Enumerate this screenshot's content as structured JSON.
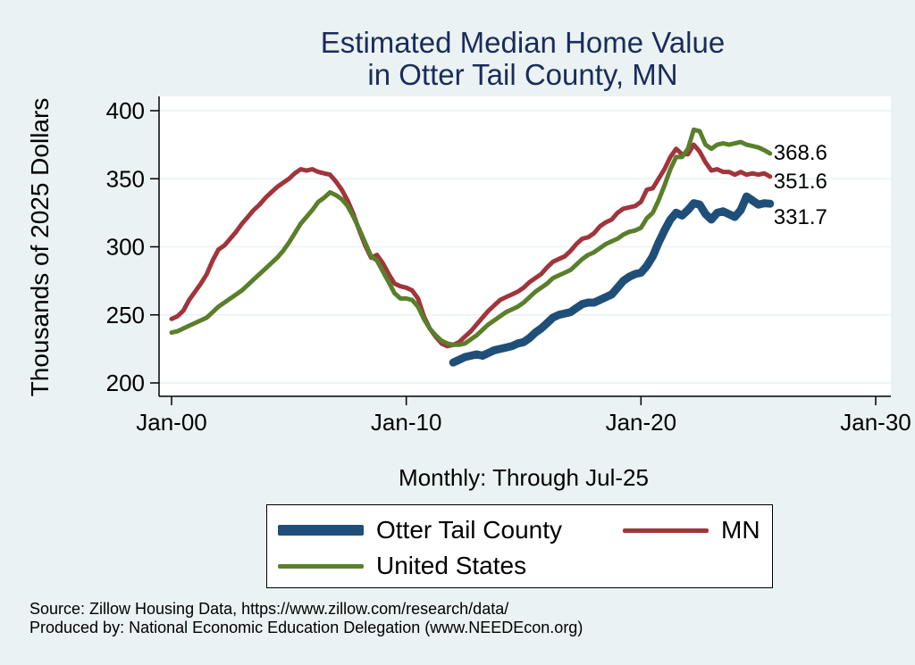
{
  "chart_data": {
    "type": "line",
    "title": [
      "Estimated Median Home Value",
      "in Otter Tail County, MN"
    ],
    "ylabel": "Thousands of 2025 Dollars",
    "xlabel": "Monthly: Through Jul-25",
    "ylim": [
      200,
      400
    ],
    "yticks": [
      200,
      250,
      300,
      350,
      400
    ],
    "xlim": [
      "2000-01",
      "2030-01"
    ],
    "xticks": [
      {
        "date": "2000-01",
        "label": "Jan-00"
      },
      {
        "date": "2010-01",
        "label": "Jan-10"
      },
      {
        "date": "2020-01",
        "label": "Jan-20"
      },
      {
        "date": "2030-01",
        "label": "Jan-30"
      }
    ],
    "grid": true,
    "series": [
      {
        "name": "Otter Tail County",
        "color": "#1f4e79",
        "end_label": "331.7",
        "points": [
          [
            "2012-01",
            215
          ],
          [
            "2012-04",
            217
          ],
          [
            "2012-07",
            219
          ],
          [
            "2012-10",
            220
          ],
          [
            "2013-01",
            221
          ],
          [
            "2013-04",
            220
          ],
          [
            "2013-07",
            222
          ],
          [
            "2013-10",
            224
          ],
          [
            "2014-01",
            225
          ],
          [
            "2014-04",
            226
          ],
          [
            "2014-07",
            227
          ],
          [
            "2014-10",
            229
          ],
          [
            "2015-01",
            230
          ],
          [
            "2015-04",
            233
          ],
          [
            "2015-07",
            237
          ],
          [
            "2015-10",
            240
          ],
          [
            "2016-01",
            244
          ],
          [
            "2016-04",
            248
          ],
          [
            "2016-07",
            250
          ],
          [
            "2016-10",
            251
          ],
          [
            "2017-01",
            252
          ],
          [
            "2017-04",
            255
          ],
          [
            "2017-07",
            258
          ],
          [
            "2017-10",
            259
          ],
          [
            "2018-01",
            259
          ],
          [
            "2018-04",
            261
          ],
          [
            "2018-07",
            263
          ],
          [
            "2018-10",
            265
          ],
          [
            "2019-01",
            270
          ],
          [
            "2019-04",
            275
          ],
          [
            "2019-07",
            278
          ],
          [
            "2019-10",
            280
          ],
          [
            "2020-01",
            281
          ],
          [
            "2020-04",
            286
          ],
          [
            "2020-07",
            293
          ],
          [
            "2020-10",
            303
          ],
          [
            "2021-01",
            312
          ],
          [
            "2021-04",
            320
          ],
          [
            "2021-07",
            325
          ],
          [
            "2021-10",
            323
          ],
          [
            "2022-01",
            327
          ],
          [
            "2022-04",
            332
          ],
          [
            "2022-07",
            331
          ],
          [
            "2022-10",
            324
          ],
          [
            "2023-01",
            320
          ],
          [
            "2023-04",
            325
          ],
          [
            "2023-07",
            326
          ],
          [
            "2023-10",
            324
          ],
          [
            "2024-01",
            322
          ],
          [
            "2024-04",
            327
          ],
          [
            "2024-07",
            337
          ],
          [
            "2024-10",
            334
          ],
          [
            "2025-01",
            331
          ],
          [
            "2025-04",
            332
          ],
          [
            "2025-07",
            331.7
          ]
        ]
      },
      {
        "name": "MN",
        "color": "#a0353b",
        "end_label": "351.6",
        "points": [
          [
            "2000-01",
            247
          ],
          [
            "2000-04",
            249
          ],
          [
            "2000-07",
            253
          ],
          [
            "2000-10",
            261
          ],
          [
            "2001-01",
            267
          ],
          [
            "2001-04",
            273
          ],
          [
            "2001-07",
            280
          ],
          [
            "2001-10",
            290
          ],
          [
            "2002-01",
            298
          ],
          [
            "2002-04",
            301
          ],
          [
            "2002-07",
            306
          ],
          [
            "2002-10",
            311
          ],
          [
            "2003-01",
            317
          ],
          [
            "2003-04",
            322
          ],
          [
            "2003-07",
            327
          ],
          [
            "2003-10",
            331
          ],
          [
            "2004-01",
            336
          ],
          [
            "2004-04",
            340
          ],
          [
            "2004-07",
            344
          ],
          [
            "2004-10",
            347
          ],
          [
            "2005-01",
            350
          ],
          [
            "2005-04",
            354
          ],
          [
            "2005-07",
            357
          ],
          [
            "2005-10",
            356
          ],
          [
            "2006-01",
            357
          ],
          [
            "2006-04",
            355
          ],
          [
            "2006-07",
            354
          ],
          [
            "2006-10",
            353
          ],
          [
            "2007-01",
            348
          ],
          [
            "2007-04",
            342
          ],
          [
            "2007-07",
            334
          ],
          [
            "2007-10",
            324
          ],
          [
            "2008-01",
            312
          ],
          [
            "2008-04",
            301
          ],
          [
            "2008-07",
            292
          ],
          [
            "2008-10",
            294
          ],
          [
            "2009-01",
            288
          ],
          [
            "2009-04",
            280
          ],
          [
            "2009-07",
            273
          ],
          [
            "2009-10",
            271
          ],
          [
            "2010-01",
            270
          ],
          [
            "2010-04",
            268
          ],
          [
            "2010-07",
            262
          ],
          [
            "2010-10",
            249
          ],
          [
            "2011-01",
            240
          ],
          [
            "2011-04",
            234
          ],
          [
            "2011-07",
            229
          ],
          [
            "2011-10",
            227
          ],
          [
            "2012-01",
            228
          ],
          [
            "2012-04",
            230
          ],
          [
            "2012-07",
            234
          ],
          [
            "2012-10",
            238
          ],
          [
            "2013-01",
            243
          ],
          [
            "2013-04",
            248
          ],
          [
            "2013-07",
            253
          ],
          [
            "2013-10",
            257
          ],
          [
            "2014-01",
            261
          ],
          [
            "2014-04",
            263
          ],
          [
            "2014-07",
            265
          ],
          [
            "2014-10",
            267
          ],
          [
            "2015-01",
            270
          ],
          [
            "2015-04",
            274
          ],
          [
            "2015-07",
            277
          ],
          [
            "2015-10",
            280
          ],
          [
            "2016-01",
            285
          ],
          [
            "2016-04",
            289
          ],
          [
            "2016-07",
            291
          ],
          [
            "2016-10",
            293
          ],
          [
            "2017-01",
            297
          ],
          [
            "2017-04",
            302
          ],
          [
            "2017-07",
            306
          ],
          [
            "2017-10",
            307
          ],
          [
            "2018-01",
            310
          ],
          [
            "2018-04",
            315
          ],
          [
            "2018-07",
            318
          ],
          [
            "2018-10",
            320
          ],
          [
            "2019-01",
            325
          ],
          [
            "2019-04",
            328
          ],
          [
            "2019-07",
            329
          ],
          [
            "2019-10",
            330
          ],
          [
            "2020-01",
            333
          ],
          [
            "2020-04",
            342
          ],
          [
            "2020-07",
            343
          ],
          [
            "2020-10",
            350
          ],
          [
            "2021-01",
            357
          ],
          [
            "2021-04",
            366
          ],
          [
            "2021-07",
            372
          ],
          [
            "2021-10",
            368
          ],
          [
            "2022-01",
            368
          ],
          [
            "2022-04",
            375
          ],
          [
            "2022-07",
            370
          ],
          [
            "2022-10",
            362
          ],
          [
            "2023-01",
            356
          ],
          [
            "2023-04",
            357
          ],
          [
            "2023-07",
            355
          ],
          [
            "2023-10",
            355
          ],
          [
            "2024-01",
            353
          ],
          [
            "2024-04",
            355
          ],
          [
            "2024-07",
            353
          ],
          [
            "2024-10",
            354
          ],
          [
            "2025-01",
            353
          ],
          [
            "2025-04",
            354
          ],
          [
            "2025-07",
            351.6
          ]
        ]
      },
      {
        "name": "United States",
        "color": "#5a7f2b",
        "end_label": "368.6",
        "points": [
          [
            "2000-01",
            237
          ],
          [
            "2000-04",
            238
          ],
          [
            "2000-07",
            240
          ],
          [
            "2000-10",
            242
          ],
          [
            "2001-01",
            244
          ],
          [
            "2001-04",
            246
          ],
          [
            "2001-07",
            248
          ],
          [
            "2001-10",
            252
          ],
          [
            "2002-01",
            256
          ],
          [
            "2002-04",
            259
          ],
          [
            "2002-07",
            262
          ],
          [
            "2002-10",
            265
          ],
          [
            "2003-01",
            268
          ],
          [
            "2003-04",
            272
          ],
          [
            "2003-07",
            276
          ],
          [
            "2003-10",
            280
          ],
          [
            "2004-01",
            284
          ],
          [
            "2004-04",
            288
          ],
          [
            "2004-07",
            292
          ],
          [
            "2004-10",
            297
          ],
          [
            "2005-01",
            303
          ],
          [
            "2005-04",
            310
          ],
          [
            "2005-07",
            317
          ],
          [
            "2005-10",
            322
          ],
          [
            "2006-01",
            327
          ],
          [
            "2006-04",
            333
          ],
          [
            "2006-07",
            336
          ],
          [
            "2006-10",
            340
          ],
          [
            "2007-01",
            338
          ],
          [
            "2007-04",
            335
          ],
          [
            "2007-07",
            330
          ],
          [
            "2007-10",
            322
          ],
          [
            "2008-01",
            313
          ],
          [
            "2008-04",
            303
          ],
          [
            "2008-07",
            293
          ],
          [
            "2008-10",
            290
          ],
          [
            "2009-01",
            282
          ],
          [
            "2009-04",
            274
          ],
          [
            "2009-07",
            266
          ],
          [
            "2009-10",
            262
          ],
          [
            "2010-01",
            262
          ],
          [
            "2010-04",
            261
          ],
          [
            "2010-07",
            256
          ],
          [
            "2010-10",
            247
          ],
          [
            "2011-01",
            240
          ],
          [
            "2011-04",
            235
          ],
          [
            "2011-07",
            231
          ],
          [
            "2011-10",
            229
          ],
          [
            "2012-01",
            228
          ],
          [
            "2012-04",
            228
          ],
          [
            "2012-07",
            229
          ],
          [
            "2012-10",
            232
          ],
          [
            "2013-01",
            235
          ],
          [
            "2013-04",
            239
          ],
          [
            "2013-07",
            243
          ],
          [
            "2013-10",
            246
          ],
          [
            "2014-01",
            249
          ],
          [
            "2014-04",
            252
          ],
          [
            "2014-07",
            254
          ],
          [
            "2014-10",
            256
          ],
          [
            "2015-01",
            259
          ],
          [
            "2015-04",
            263
          ],
          [
            "2015-07",
            267
          ],
          [
            "2015-10",
            270
          ],
          [
            "2016-01",
            273
          ],
          [
            "2016-04",
            277
          ],
          [
            "2016-07",
            279
          ],
          [
            "2016-10",
            281
          ],
          [
            "2017-01",
            283
          ],
          [
            "2017-04",
            287
          ],
          [
            "2017-07",
            291
          ],
          [
            "2017-10",
            294
          ],
          [
            "2018-01",
            296
          ],
          [
            "2018-04",
            299
          ],
          [
            "2018-07",
            302
          ],
          [
            "2018-10",
            304
          ],
          [
            "2019-01",
            306
          ],
          [
            "2019-04",
            309
          ],
          [
            "2019-07",
            311
          ],
          [
            "2019-10",
            312
          ],
          [
            "2020-01",
            314
          ],
          [
            "2020-04",
            321
          ],
          [
            "2020-07",
            325
          ],
          [
            "2020-10",
            334
          ],
          [
            "2021-01",
            345
          ],
          [
            "2021-04",
            357
          ],
          [
            "2021-07",
            366
          ],
          [
            "2021-10",
            366
          ],
          [
            "2022-01",
            372
          ],
          [
            "2022-04",
            386
          ],
          [
            "2022-07",
            385
          ],
          [
            "2022-10",
            375
          ],
          [
            "2023-01",
            372
          ],
          [
            "2023-04",
            375
          ],
          [
            "2023-07",
            376
          ],
          [
            "2023-10",
            375
          ],
          [
            "2024-01",
            376
          ],
          [
            "2024-04",
            377
          ],
          [
            "2024-07",
            375
          ],
          [
            "2024-10",
            374
          ],
          [
            "2025-01",
            373
          ],
          [
            "2025-04",
            371
          ],
          [
            "2025-07",
            368.6
          ]
        ]
      }
    ]
  },
  "legend": {
    "items": [
      {
        "label": "Otter Tail County",
        "color": "#1f4e79"
      },
      {
        "label": "MN",
        "color": "#a0353b"
      },
      {
        "label": "United States",
        "color": "#5a7f2b"
      }
    ]
  },
  "source_lines": [
    "Source: Zillow Housing Data, https://www.zillow.com/research/data/",
    "Produced by: National Economic Education Delegation (www.NEEDEcon.org)"
  ]
}
